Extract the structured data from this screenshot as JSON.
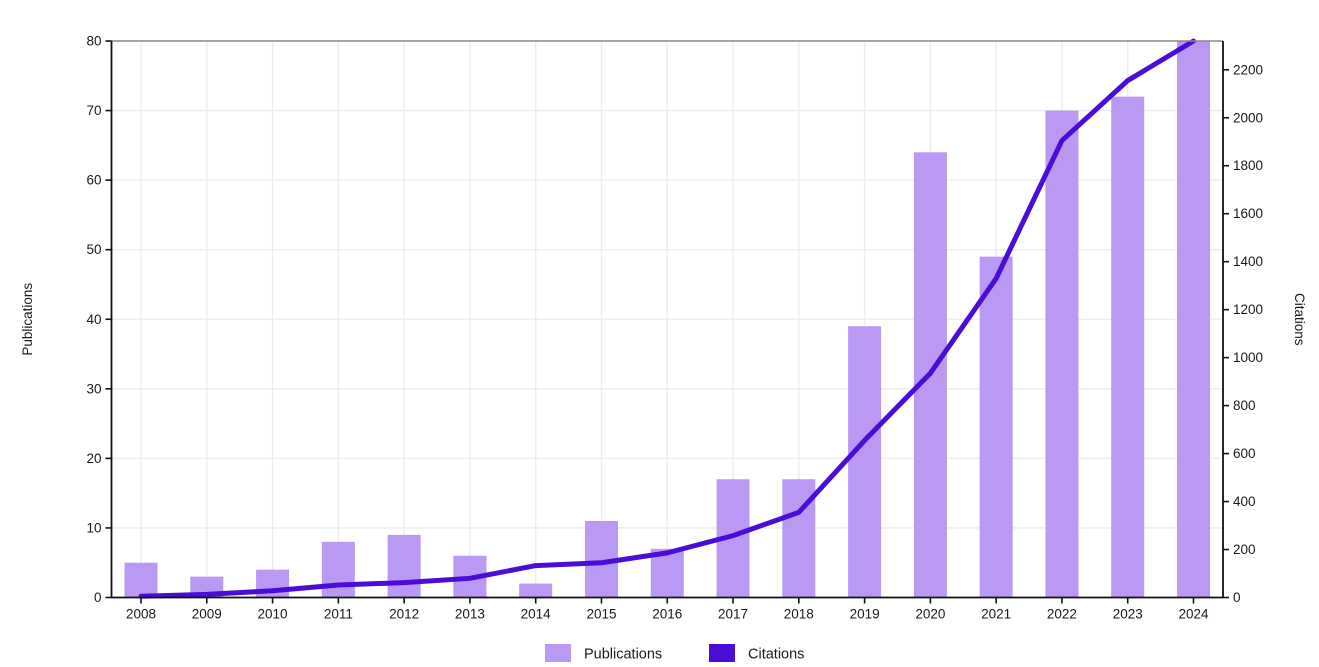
{
  "chart_data": {
    "type": "bar+line",
    "title": "",
    "categories": [
      "2008",
      "2009",
      "2010",
      "2011",
      "2012",
      "2013",
      "2014",
      "2015",
      "2016",
      "2017",
      "2018",
      "2019",
      "2020",
      "2021",
      "2022",
      "2023",
      "2024"
    ],
    "series": [
      {
        "name": "Publications",
        "type": "bar",
        "axis": "left",
        "color": "#b999f3",
        "values": [
          5,
          3,
          4,
          8,
          9,
          6,
          2,
          11,
          7,
          17,
          17,
          39,
          64,
          49,
          70,
          72,
          80
        ]
      },
      {
        "name": "Citations",
        "type": "line",
        "axis": "right",
        "color": "#4a0dd8",
        "values": [
          5,
          13,
          28,
          52,
          62,
          80,
          133,
          145,
          186,
          258,
          355,
          655,
          935,
          1330,
          1905,
          2155,
          2320
        ]
      }
    ],
    "left_axis": {
      "label": "Publications",
      "min": 0,
      "max": 80,
      "tick_step": 10,
      "ticks": [
        0,
        10,
        20,
        30,
        40,
        50,
        60,
        70,
        80
      ]
    },
    "right_axis": {
      "label": "Citations",
      "min": 0,
      "max": 2320,
      "tick_step": 200,
      "ticks": [
        0,
        200,
        400,
        600,
        800,
        1000,
        1200,
        1400,
        1600,
        1800,
        2000,
        2200
      ]
    },
    "legend": {
      "position": "bottom-center",
      "entries": [
        {
          "label": "Publications",
          "swatch_color": "#b999f3"
        },
        {
          "label": "Citations",
          "swatch_color": "#4a0dd8"
        }
      ]
    },
    "grid": {
      "vertical": true,
      "horizontal": true,
      "color": "#ececec"
    },
    "frame": {
      "top_spine_color": "#8a8a8a",
      "axis_spine_color": "#111111"
    }
  }
}
